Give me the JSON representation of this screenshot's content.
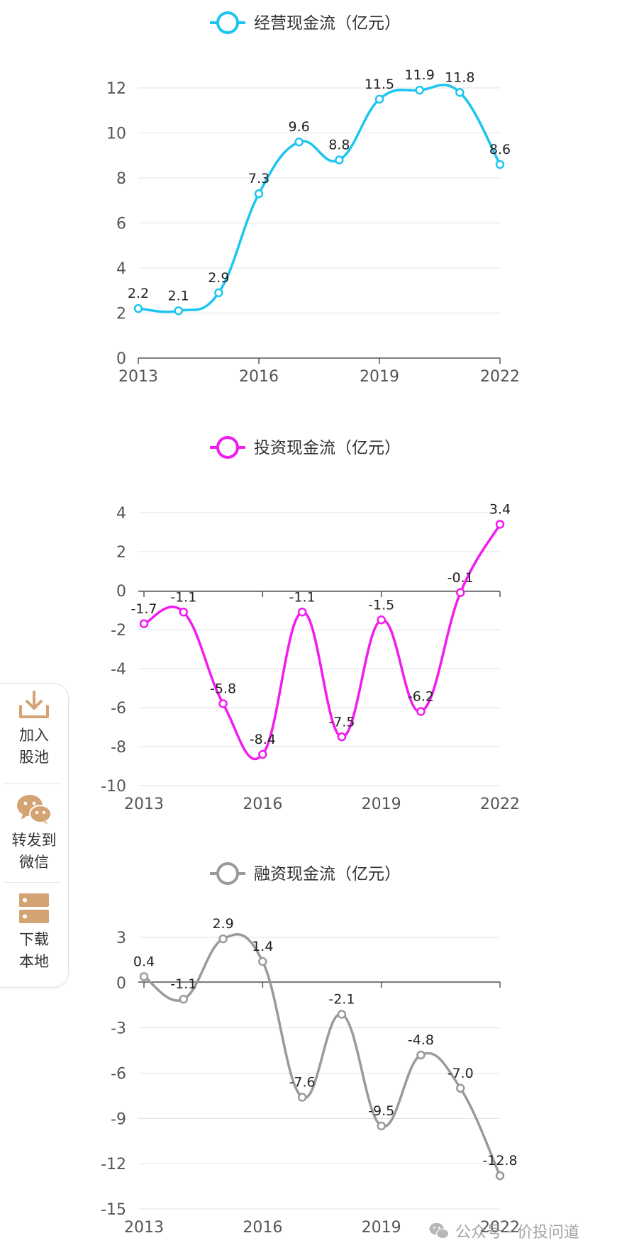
{
  "chart_data": [
    {
      "type": "line",
      "series": [
        {
          "name": "经营现金流（亿元）",
          "values": [
            2.2,
            2.1,
            2.9,
            7.3,
            9.6,
            8.8,
            11.5,
            11.9,
            11.8,
            8.6
          ],
          "color": "#1cc6f0"
        }
      ],
      "x": [
        2013,
        2014,
        2015,
        2016,
        2017,
        2018,
        2019,
        2020,
        2021,
        2022
      ],
      "xticks": [
        "2013",
        "2016",
        "2019",
        "2022"
      ],
      "yticks": [
        "0",
        "2",
        "4",
        "6",
        "8",
        "10",
        "12"
      ],
      "ylim": [
        0,
        12
      ],
      "data_labels": [
        "2.2",
        "2.1",
        "2.9",
        "7.3",
        "9.6",
        "8.8",
        "11.5",
        "11.9",
        "11.8",
        "8.6"
      ],
      "legend": "top-center",
      "grid": true
    },
    {
      "type": "line",
      "series": [
        {
          "name": "投资现金流（亿元）",
          "values": [
            -1.7,
            -1.1,
            -5.8,
            -8.4,
            -1.1,
            -7.5,
            -1.5,
            -6.2,
            -0.1,
            3.4
          ],
          "color": "#f21bf0"
        }
      ],
      "x": [
        2013,
        2014,
        2015,
        2016,
        2017,
        2018,
        2019,
        2020,
        2021,
        2022
      ],
      "xticks": [
        "2013",
        "2016",
        "2019",
        "2022"
      ],
      "yticks": [
        "-10",
        "-8",
        "-6",
        "-4",
        "-2",
        "0",
        "2",
        "4"
      ],
      "ylim": [
        -10,
        4
      ],
      "data_labels": [
        "-1.7",
        "-1.1",
        "-5.8",
        "-8.4",
        "-1.1",
        "-7.5",
        "-1.5",
        "-6.2",
        "-0.1",
        "3.4"
      ],
      "legend": "top-center",
      "grid": true
    },
    {
      "type": "line",
      "series": [
        {
          "name": "融资现金流（亿元）",
          "values": [
            0.4,
            -1.1,
            2.9,
            1.4,
            -7.6,
            -2.1,
            -9.5,
            -4.8,
            -7.0,
            -12.8
          ],
          "color": "#9a9a9a"
        }
      ],
      "x": [
        2013,
        2014,
        2015,
        2016,
        2017,
        2018,
        2019,
        2020,
        2021,
        2022
      ],
      "xticks": [
        "2013",
        "2016",
        "2019",
        "2022"
      ],
      "yticks": [
        "-15",
        "-12",
        "-9",
        "-6",
        "-3",
        "0",
        "3"
      ],
      "ylim": [
        -15,
        3
      ],
      "data_labels": [
        "0.4",
        "-1.1",
        "2.9",
        "1.4",
        "-7.6",
        "-2.1",
        "-9.5",
        "-4.8",
        "-7.0",
        "-12.8"
      ],
      "legend": "top-center",
      "grid": true
    }
  ],
  "side_panel": {
    "items": [
      {
        "label": "加入\n股池",
        "icon": "download-tray-icon"
      },
      {
        "label": "转发到\n微信",
        "icon": "wechat-icon"
      },
      {
        "label": "下载\n本地",
        "icon": "server-icon"
      }
    ],
    "icon_color": "#d4a373"
  },
  "watermark": {
    "text": "公众号 · 价投问道",
    "icon": "wechat-icon"
  }
}
